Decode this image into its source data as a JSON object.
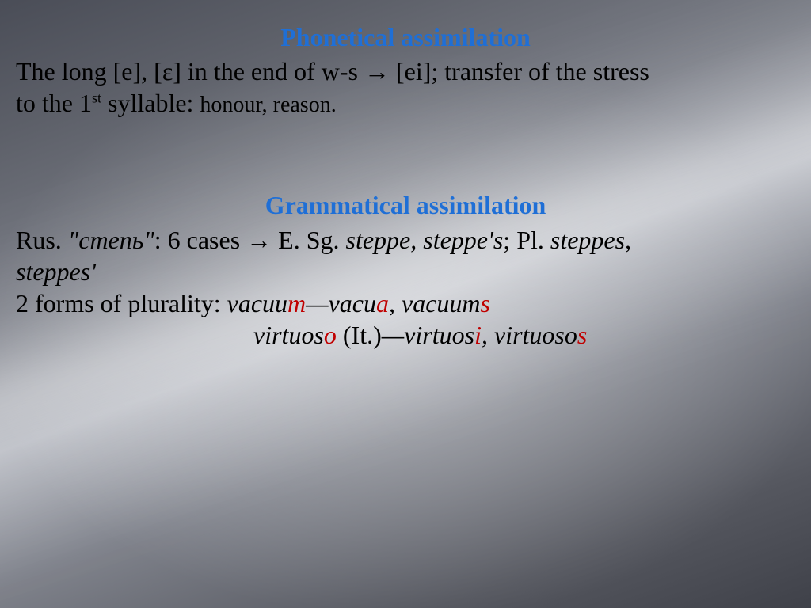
{
  "colors": {
    "heading_blue": "#1f6fd6",
    "body_text": "#000000",
    "highlight_red": "#c00000",
    "bg_gradient": [
      "#4a4d57",
      "#5d6069",
      "#7a7d86",
      "#b4b7bf",
      "#7f828b",
      "#55575f",
      "#3f4149"
    ]
  },
  "typography": {
    "font_family": "Times New Roman",
    "heading_fontsize_pt": 24,
    "body_fontsize_pt": 24,
    "small_fontsize_pt": 21
  },
  "section1": {
    "title": "Phonetical assimilation",
    "line1_a": "The long [e], [ε] in the end of w-s → [ei]; transfer of the stress",
    "line2_a": "to the 1",
    "line2_ord": "st",
    "line2_b": " syllable: ",
    "line2_examples": "honour, reason."
  },
  "section2": {
    "title": "Grammatical assimilation",
    "line1_a": "Rus. ",
    "line1_quote": "\"степь\"",
    "line1_b": ": 6 cases → E. Sg. ",
    "line1_c": "steppe, steppe's",
    "line1_d": "; Pl. ",
    "line1_e": "steppes",
    "line1_f": ", ",
    "line2_a": "steppes'",
    "line3_a": "2 forms of plurality: ",
    "vacuum_stem1": "vacuu",
    "vacuum_hl1": "m",
    "dash": "—",
    "vacuum_stem2": "vacu",
    "vacuum_hl2": "a",
    "comma_sp": ", ",
    "vacuums_stem": "vacuum",
    "vacuums_hl": "s",
    "virtuoso_stem": "virtuos",
    "virtuoso_hl": "o",
    "it_note": " (It.)",
    "virtuosi_stem": "virtuos",
    "virtuosi_hl": "i",
    "virtuosos_stem": "virtuoso",
    "virtuosos_hl": "s"
  }
}
